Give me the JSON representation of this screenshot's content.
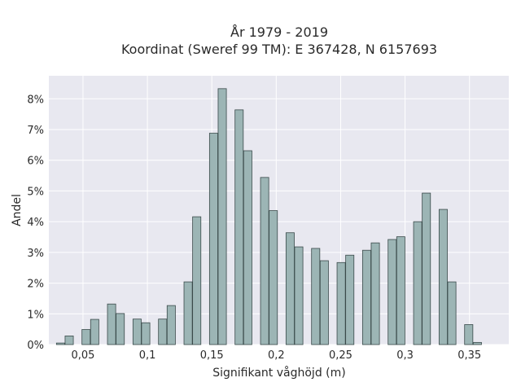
{
  "chart_data": {
    "type": "bar",
    "title": "År 1979 - 2019",
    "subtitle": "Koordinat (Sweref 99 TM): E 367428, N 6157693",
    "xlabel": "Signifikant våghöjd (m)",
    "ylabel": "Andel",
    "xlim": [
      0.0235,
      0.3805
    ],
    "ylim": [
      0,
      0.0875
    ],
    "x_ticks": [
      {
        "value": 0.05,
        "label": "0,05"
      },
      {
        "value": 0.1,
        "label": "0,1"
      },
      {
        "value": 0.15,
        "label": "0,15"
      },
      {
        "value": 0.2,
        "label": "0,2"
      },
      {
        "value": 0.25,
        "label": "0,25"
      },
      {
        "value": 0.3,
        "label": "0,3"
      },
      {
        "value": 0.35,
        "label": "0,35"
      }
    ],
    "y_ticks": [
      {
        "value": 0,
        "label": "0%"
      },
      {
        "value": 0.01,
        "label": "1%"
      },
      {
        "value": 0.02,
        "label": "2%"
      },
      {
        "value": 0.03,
        "label": "3%"
      },
      {
        "value": 0.04,
        "label": "4%"
      },
      {
        "value": 0.05,
        "label": "5%"
      },
      {
        "value": 0.06,
        "label": "6%"
      },
      {
        "value": 0.07,
        "label": "7%"
      },
      {
        "value": 0.08,
        "label": "8%"
      }
    ],
    "grid": true,
    "bar_width": 0.0064,
    "bars": [
      {
        "x": 0.0326,
        "y": 0.0005
      },
      {
        "x": 0.0393,
        "y": 0.0028
      },
      {
        "x": 0.0524,
        "y": 0.0049
      },
      {
        "x": 0.0591,
        "y": 0.0082
      },
      {
        "x": 0.0722,
        "y": 0.0132
      },
      {
        "x": 0.0789,
        "y": 0.0101
      },
      {
        "x": 0.092,
        "y": 0.0083
      },
      {
        "x": 0.0987,
        "y": 0.0071
      },
      {
        "x": 0.1118,
        "y": 0.0083
      },
      {
        "x": 0.1185,
        "y": 0.0127
      },
      {
        "x": 0.1316,
        "y": 0.0204
      },
      {
        "x": 0.1383,
        "y": 0.0416
      },
      {
        "x": 0.1514,
        "y": 0.0688
      },
      {
        "x": 0.1581,
        "y": 0.0833
      },
      {
        "x": 0.1712,
        "y": 0.0764
      },
      {
        "x": 0.1779,
        "y": 0.0631
      },
      {
        "x": 0.191,
        "y": 0.0544
      },
      {
        "x": 0.1977,
        "y": 0.0436
      },
      {
        "x": 0.2108,
        "y": 0.0364
      },
      {
        "x": 0.2175,
        "y": 0.0318
      },
      {
        "x": 0.2306,
        "y": 0.0313
      },
      {
        "x": 0.2373,
        "y": 0.0273
      },
      {
        "x": 0.2504,
        "y": 0.0267
      },
      {
        "x": 0.2571,
        "y": 0.0291
      },
      {
        "x": 0.2702,
        "y": 0.0307
      },
      {
        "x": 0.2769,
        "y": 0.0331
      },
      {
        "x": 0.29,
        "y": 0.0342
      },
      {
        "x": 0.2967,
        "y": 0.0351
      },
      {
        "x": 0.3098,
        "y": 0.04
      },
      {
        "x": 0.3165,
        "y": 0.0493
      },
      {
        "x": 0.3296,
        "y": 0.044
      },
      {
        "x": 0.3363,
        "y": 0.0204
      },
      {
        "x": 0.3494,
        "y": 0.0065
      },
      {
        "x": 0.3561,
        "y": 0.0007
      }
    ],
    "colors": {
      "plot_background": "#e8e8f0",
      "bar_fill": "#9cb5b5",
      "bar_stroke": "#3a4a4a",
      "grid": "#ffffff"
    }
  }
}
